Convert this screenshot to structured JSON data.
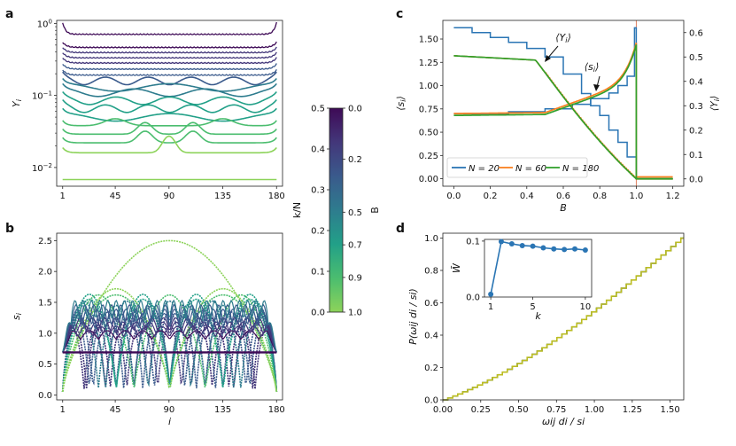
{
  "panel_labels": {
    "a": "a",
    "b": "b",
    "c": "c",
    "d": "d"
  },
  "colors": {
    "viridis": [
      "#3e0a56",
      "#43377a",
      "#3a5a8c",
      "#2e7c8e",
      "#22a088",
      "#4bbd6f",
      "#8dd35a"
    ],
    "n20": "#2a75b4",
    "n60": "#fa8020",
    "n180": "#32a02c",
    "hist": [
      "#d62728",
      "#9467bd",
      "#2ca02c",
      "#1f77b4",
      "#bcbd22"
    ],
    "inset": "#2a75b4"
  },
  "colorbar": {
    "left_label": "k/N",
    "right_label": "B",
    "left_ticks": [
      "0.5",
      "0.4",
      "0.3",
      "0.2",
      "0.1",
      "0.0"
    ],
    "right_ticks": [
      "0.0",
      "0.2",
      "0.5",
      "0.7",
      "0.9",
      "1.0"
    ],
    "left_values": [
      0.5,
      0.4,
      0.3,
      0.2,
      0.1,
      0.0
    ],
    "right_values": [
      0.0,
      0.2,
      0.5,
      0.7,
      0.9,
      1.0
    ]
  },
  "chart_data": [
    {
      "id": "a",
      "type": "line",
      "ylabel": "Y_i",
      "xlabel": "",
      "xticks": [
        "1",
        "45",
        "90",
        "135",
        "180"
      ],
      "xtick_values": [
        1,
        45,
        90,
        135,
        180
      ],
      "xlim": [
        -4,
        185
      ],
      "yscale": "log",
      "ylim": [
        0.0055,
        1.1
      ],
      "yticks": [
        "10^0",
        "10^-1",
        "10^-2"
      ],
      "ytick_values": [
        1,
        0.1,
        0.01
      ],
      "series_levels": [
        0.7,
        0.46,
        0.39,
        0.33,
        0.28,
        0.23,
        0.19,
        0.16,
        0.13,
        0.11,
        0.085,
        0.066,
        0.05,
        0.038,
        0.029,
        0.022,
        0.016,
        0.0068
      ],
      "bump_profiles": [
        "flat",
        "flat",
        "flat",
        "flat",
        "flat",
        "flat",
        "flat",
        "wave",
        "wave",
        "wave",
        "wave",
        "wave",
        "wave",
        "dip",
        "twin",
        "twin",
        "center",
        "flat"
      ]
    },
    {
      "id": "b",
      "type": "line",
      "ylabel": "s_i",
      "xlabel": "i",
      "xticks": [
        "1",
        "45",
        "90",
        "135",
        "180"
      ],
      "xtick_values": [
        1,
        45,
        90,
        135,
        180
      ],
      "xlim": [
        -4,
        185
      ],
      "ylim": [
        -0.08,
        2.62
      ],
      "yticks": [
        "0.0",
        "0.5",
        "1.0",
        "1.5",
        "2.0",
        "2.5"
      ],
      "ytick_values": [
        0,
        0.5,
        1.0,
        1.5,
        2.0,
        2.5
      ],
      "arch_counts": [
        1,
        2,
        2,
        3,
        4,
        4,
        5,
        6,
        7,
        8,
        9,
        10
      ],
      "arch_peaks": [
        2.5,
        1.72,
        1.62,
        1.62,
        1.63,
        1.55,
        1.52,
        1.45,
        1.35,
        1.27,
        1.14,
        1.05
      ],
      "base_level": 0.69
    },
    {
      "id": "c",
      "type": "line",
      "xlabel": "B",
      "ylabel_left": "⟨s_i⟩",
      "ylabel_right": "⟨Y_i⟩",
      "xticks": [
        "0.0",
        "0.2",
        "0.4",
        "0.6",
        "0.8",
        "1.0",
        "1.2"
      ],
      "xtick_values": [
        0,
        0.2,
        0.4,
        0.6,
        0.8,
        1.0,
        1.2
      ],
      "xlim": [
        -0.06,
        1.26
      ],
      "ylim_left": [
        -0.08,
        1.7
      ],
      "yticks_left": [
        "0.00",
        "0.25",
        "0.50",
        "0.75",
        "1.00",
        "1.25",
        "1.50"
      ],
      "ytick_left_values": [
        0,
        0.25,
        0.5,
        0.75,
        1.0,
        1.25,
        1.5
      ],
      "ylim_right": [
        -0.03,
        0.65
      ],
      "yticks_right": [
        "0.0",
        "0.1",
        "0.2",
        "0.3",
        "0.4",
        "0.5",
        "0.6"
      ],
      "ytick_right_values": [
        0,
        0.1,
        0.2,
        0.3,
        0.4,
        0.5,
        0.6
      ],
      "annotations": [
        "⟨Y_i⟩",
        "⟨s_i⟩"
      ],
      "vline_x": 1.0,
      "legend": [
        "N = 20",
        "N = 60",
        "N = 180"
      ],
      "legend_position": "bottom"
    },
    {
      "id": "d",
      "type": "line",
      "xlabel": "ω_ij d_i / s_i",
      "ylabel": "P(ω_ij d_i / s_i)",
      "xticks": [
        "0.00",
        "0.25",
        "0.50",
        "0.75",
        "1.00",
        "1.25",
        "1.50"
      ],
      "xtick_values": [
        0,
        0.25,
        0.5,
        0.75,
        1.0,
        1.25,
        1.5
      ],
      "xlim": [
        0,
        1.59
      ],
      "ylim": [
        0,
        1.03
      ],
      "yticks": [
        "0.0",
        "0.2",
        "0.4",
        "0.6",
        "0.8",
        "1.0"
      ],
      "ytick_values": [
        0,
        0.2,
        0.4,
        0.6,
        0.8,
        1.0
      ],
      "inset": {
        "xlabel": "k",
        "ylabel": "W̄",
        "x": [
          1,
          2,
          3,
          4,
          5,
          6,
          7,
          8,
          9,
          10
        ],
        "y": [
          0.005,
          0.099,
          0.095,
          0.092,
          0.091,
          0.088,
          0.086,
          0.085,
          0.086,
          0.084
        ],
        "xticks": [
          "1",
          "5",
          "10"
        ],
        "xtick_values": [
          1,
          5,
          10
        ],
        "yticks": [
          "0.0",
          "0.1"
        ],
        "ytick_values": [
          0,
          0.1
        ],
        "xlim": [
          0.4,
          10.6
        ],
        "ylim": [
          0,
          0.103
        ]
      }
    }
  ]
}
